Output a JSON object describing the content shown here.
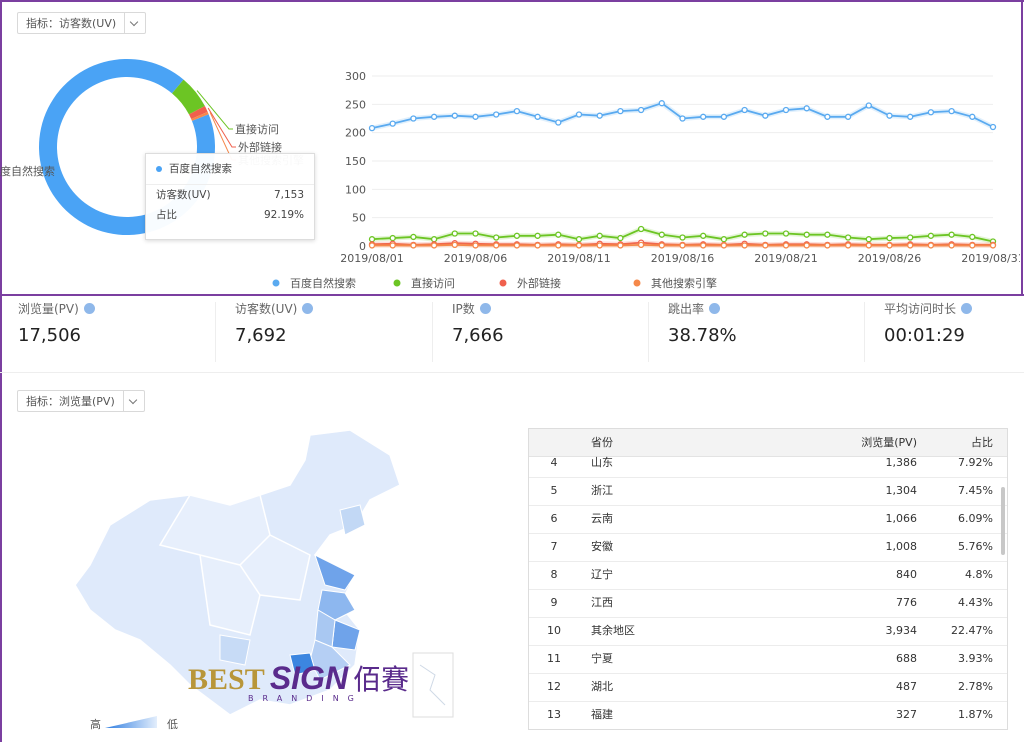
{
  "top_selector": {
    "label": "指标：",
    "value": "访客数(UV)"
  },
  "chart_data": [
    {
      "type": "donut",
      "categories": [
        "百度自然搜索",
        "直接访问",
        "外部链接",
        "其他搜索引擎"
      ],
      "values": [
        7153,
        480,
        90,
        36
      ],
      "colors": [
        "#4aa3f5",
        "#6cc524",
        "#f0604d",
        "#f5884a"
      ],
      "tooltip": {
        "title": "百度自然搜索",
        "rows": [
          [
            "访客数(UV)",
            "7,153"
          ],
          [
            "占比",
            "92.19%"
          ]
        ]
      }
    },
    {
      "type": "line",
      "categories": [
        "2019/08/01",
        null,
        null,
        null,
        null,
        "2019/08/06",
        null,
        null,
        null,
        null,
        "2019/08/11",
        null,
        null,
        null,
        null,
        "2019/08/16",
        null,
        null,
        null,
        null,
        "2019/08/21",
        null,
        null,
        null,
        null,
        "2019/08/26",
        null,
        null,
        null,
        null,
        "2019/08/31"
      ],
      "series": [
        {
          "name": "百度自然搜索",
          "color": "#5aaaf0",
          "values": [
            208,
            216,
            225,
            228,
            230,
            228,
            232,
            238,
            228,
            218,
            232,
            230,
            238,
            240,
            252,
            225,
            228,
            228,
            240,
            230,
            240,
            243,
            228,
            228,
            248,
            230,
            228,
            236,
            238,
            228,
            210
          ]
        },
        {
          "name": "直接访问",
          "color": "#6cc524",
          "values": [
            12,
            14,
            16,
            12,
            22,
            22,
            15,
            18,
            18,
            20,
            12,
            18,
            14,
            30,
            20,
            15,
            18,
            12,
            20,
            22,
            22,
            20,
            20,
            15,
            12,
            14,
            15,
            18,
            20,
            16,
            8
          ]
        },
        {
          "name": "外部链接",
          "color": "#f0604d",
          "values": [
            3,
            4,
            2,
            3,
            5,
            4,
            3,
            3,
            2,
            3,
            2,
            4,
            3,
            6,
            3,
            2,
            3,
            2,
            4,
            2,
            3,
            3,
            2,
            3,
            2,
            2,
            3,
            2,
            3,
            2,
            2
          ]
        },
        {
          "name": "其他搜索引擎",
          "color": "#f5884a",
          "values": [
            1,
            1,
            1,
            1,
            2,
            1,
            1,
            1,
            1,
            1,
            1,
            1,
            1,
            2,
            1,
            1,
            1,
            1,
            1,
            1,
            1,
            1,
            1,
            1,
            1,
            1,
            1,
            1,
            1,
            1,
            1
          ]
        }
      ],
      "ylim": [
        0,
        300
      ],
      "yticks": [
        0,
        50,
        100,
        150,
        200,
        250,
        300
      ],
      "grid": true,
      "legend": "bottom"
    }
  ],
  "stats": [
    {
      "label": "浏览量(PV)",
      "value": "17,506"
    },
    {
      "label": "访客数(UV)",
      "value": "7,692"
    },
    {
      "label": "IP数",
      "value": "7,666"
    },
    {
      "label": "跳出率",
      "value": "38.78%"
    },
    {
      "label": "平均访问时长",
      "value": "00:01:29"
    }
  ],
  "map_panel": {
    "selector": {
      "label": "指标：",
      "value": "浏览量(PV)"
    },
    "legend": {
      "high": "高",
      "low": "低"
    }
  },
  "table": {
    "columns": [
      "省份",
      "浏览量(PV)",
      "占比"
    ],
    "rows": [
      [
        "4",
        "山东",
        "1,386",
        "7.92%"
      ],
      [
        "5",
        "浙江",
        "1,304",
        "7.45%"
      ],
      [
        "6",
        "云南",
        "1,066",
        "6.09%"
      ],
      [
        "7",
        "安徽",
        "1,008",
        "5.76%"
      ],
      [
        "8",
        "辽宁",
        "840",
        "4.8%"
      ],
      [
        "9",
        "江西",
        "776",
        "4.43%"
      ],
      [
        "10",
        "其余地区",
        "3,934",
        "22.47%"
      ],
      [
        "11",
        "宁夏",
        "688",
        "3.93%"
      ],
      [
        "12",
        "湖北",
        "487",
        "2.78%"
      ],
      [
        "13",
        "福建",
        "327",
        "1.87%"
      ]
    ]
  },
  "watermark": {
    "brand": "BEST",
    "sign": "SIGN",
    "cn": "佰賽",
    "sub": "BRANDING"
  }
}
